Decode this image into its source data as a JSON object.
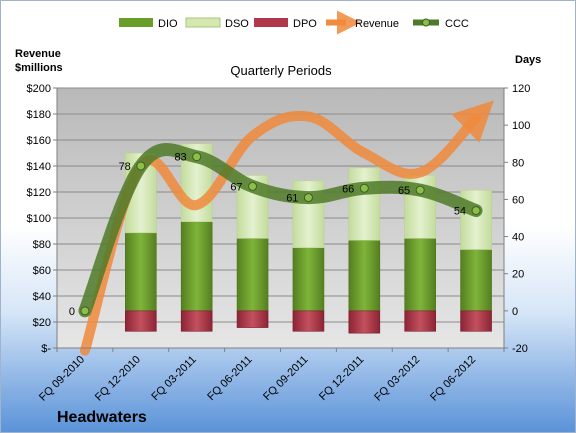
{
  "chart_data": {
    "type": "bar",
    "title": "Quarterly Periods",
    "company": "Headwaters",
    "y_left_label_line1": "Revenue",
    "y_left_label_line2": "$millions",
    "y_right_label": "Days",
    "y_left_ticks": [
      "$-",
      "$20",
      "$40",
      "$60",
      "$80",
      "$100",
      "$120",
      "$140",
      "$160",
      "$180",
      "$200"
    ],
    "y_right_ticks": [
      "-20",
      "0",
      "20",
      "40",
      "60",
      "80",
      "100",
      "120"
    ],
    "ylim_left": [
      0,
      200
    ],
    "ylim_right": [
      -20,
      120
    ],
    "categories": [
      "FQ 09-2010",
      "FQ 12-2010",
      "FQ 03-2011",
      "FQ 06-2011",
      "FQ 09-2011",
      "FQ 12-2011",
      "FQ 03-2012",
      "FQ 06-2012"
    ],
    "legend_position": "top",
    "series": [
      {
        "name": "DIO",
        "axis": "days",
        "color": "#6a9e2a",
        "values": [
          null,
          42,
          48,
          39,
          34,
          38,
          39,
          33
        ]
      },
      {
        "name": "DSO",
        "axis": "days",
        "color": "#d4e8b0",
        "values": [
          null,
          43,
          42,
          34,
          36,
          39,
          34,
          32
        ]
      },
      {
        "name": "DPO",
        "axis": "days",
        "color": "#b0384a",
        "values": [
          null,
          -11,
          -11,
          -9,
          -11,
          -12,
          -11,
          -11
        ]
      },
      {
        "name": "Revenue",
        "axis": "revenue",
        "color": "#f08a3c",
        "values": [
          -2,
          140,
          110,
          163,
          178,
          150,
          135,
          177
        ]
      },
      {
        "name": "CCC",
        "axis": "days",
        "color": "#4f7a28",
        "values": [
          0,
          78,
          83,
          67,
          61,
          66,
          65,
          54
        ]
      }
    ],
    "data_labels": [
      "0",
      "78",
      "83",
      "67",
      "61",
      "66",
      "65",
      "54"
    ]
  }
}
